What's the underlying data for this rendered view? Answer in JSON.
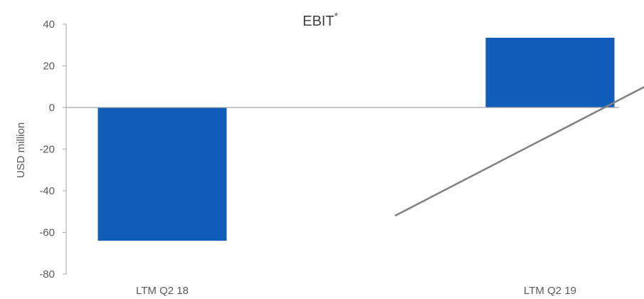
{
  "chart_data": {
    "type": "bar",
    "title": "EBIT",
    "title_superscript": "*",
    "xlabel": "",
    "ylabel": "USD million",
    "categories": [
      "LTM Q2 18",
      "LTM Q2 19"
    ],
    "values": [
      -64,
      33.5
    ],
    "ylim": [
      -80,
      40
    ],
    "yticks": [
      40,
      20,
      0,
      -20,
      -40,
      -60,
      -80
    ],
    "grid": false,
    "legend": "none",
    "bar_color": "#0F5DB8",
    "annotations": [
      {
        "type": "arrow",
        "from": {
          "category_index": 0.6,
          "y": -52
        },
        "to": {
          "category_index": 1.4,
          "y": 25
        },
        "color": "#808080"
      }
    ]
  }
}
